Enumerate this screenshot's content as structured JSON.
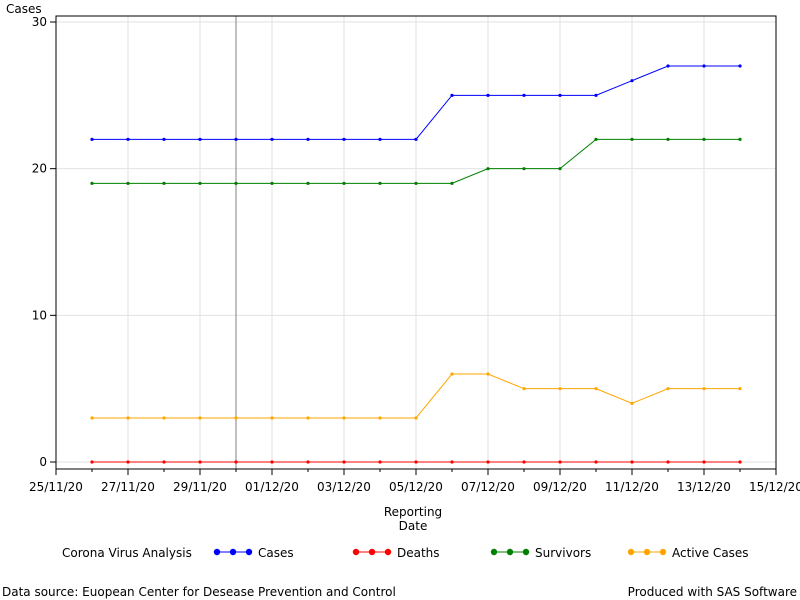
{
  "chart_data": {
    "type": "line",
    "ylabel": "Cases",
    "xlabel_line1": "Reporting",
    "xlabel_line2": "Date",
    "ylim": [
      0,
      30
    ],
    "yticks": [
      0,
      10,
      20,
      30
    ],
    "xlim": [
      "2020-11-25",
      "2020-12-15"
    ],
    "xticks": [
      "2020-11-25",
      "2020-11-27",
      "2020-11-29",
      "2020-12-01",
      "2020-12-03",
      "2020-12-05",
      "2020-12-07",
      "2020-12-09",
      "2020-12-11",
      "2020-12-13",
      "2020-12-15"
    ],
    "xtick_labels": [
      "25/11/20",
      "27/11/20",
      "29/11/20",
      "01/12/20",
      "03/12/20",
      "05/12/20",
      "07/12/20",
      "09/12/20",
      "11/12/20",
      "13/12/20",
      "15/12/20"
    ],
    "x": [
      "2020-11-26",
      "2020-11-27",
      "2020-11-28",
      "2020-11-29",
      "2020-11-30",
      "2020-12-01",
      "2020-12-02",
      "2020-12-03",
      "2020-12-04",
      "2020-12-05",
      "2020-12-06",
      "2020-12-07",
      "2020-12-08",
      "2020-12-09",
      "2020-12-10",
      "2020-12-11",
      "2020-12-12",
      "2020-12-13",
      "2020-12-14"
    ],
    "reference_line_x": "2020-11-30",
    "grid": true,
    "legend_position": "bottom",
    "legend_title": "Corona Virus Analysis",
    "series": [
      {
        "name": "Cases",
        "color": "#0000ff",
        "values": [
          22,
          22,
          22,
          22,
          22,
          22,
          22,
          22,
          22,
          22,
          25,
          25,
          25,
          25,
          25,
          26,
          27,
          27,
          27
        ]
      },
      {
        "name": "Deaths",
        "color": "#ff0000",
        "values": [
          0,
          0,
          0,
          0,
          0,
          0,
          0,
          0,
          0,
          0,
          0,
          0,
          0,
          0,
          0,
          0,
          0,
          0,
          0
        ]
      },
      {
        "name": "Survivors",
        "color": "#008000",
        "values": [
          19,
          19,
          19,
          19,
          19,
          19,
          19,
          19,
          19,
          19,
          19,
          20,
          20,
          20,
          22,
          22,
          22,
          22,
          22
        ]
      },
      {
        "name": "Active Cases",
        "color": "#ffa500",
        "values": [
          3,
          3,
          3,
          3,
          3,
          3,
          3,
          3,
          3,
          3,
          6,
          6,
          5,
          5,
          5,
          4,
          5,
          5,
          5
        ]
      }
    ]
  },
  "footer": {
    "source": "Data source: Euopean Center for Desease Prevention and Control",
    "produced": "Produced with SAS Software"
  }
}
